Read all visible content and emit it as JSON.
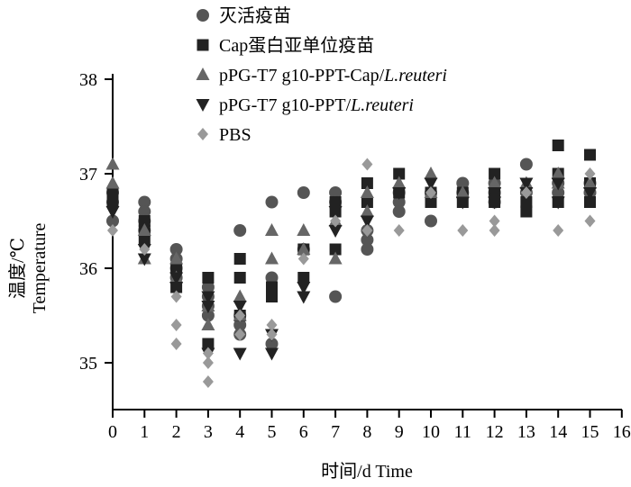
{
  "chart_data": {
    "type": "scatter",
    "title": "",
    "xlabel": "时间/d Time",
    "ylabel_line1": "温度/℃",
    "ylabel_line2": "Temperature",
    "xlim": [
      0,
      16
    ],
    "ylim": [
      34.5,
      38
    ],
    "xticks": [
      0,
      1,
      2,
      3,
      4,
      5,
      6,
      7,
      8,
      9,
      10,
      11,
      12,
      13,
      14,
      15,
      16
    ],
    "yticks": [
      35,
      36,
      37,
      38
    ],
    "grid": false,
    "legend_position": "top-left",
    "series": [
      {
        "name": "灭活疫苗",
        "name_parts": [
          {
            "text": "灭活疫苗",
            "italic": false
          }
        ],
        "marker": "circle",
        "color": "#555555",
        "points": [
          [
            0,
            36.8
          ],
          [
            0,
            36.7
          ],
          [
            0,
            36.5
          ],
          [
            1,
            36.7
          ],
          [
            1,
            36.6
          ],
          [
            1,
            36.5
          ],
          [
            1,
            36.4
          ],
          [
            2,
            36.2
          ],
          [
            2,
            36.1
          ],
          [
            2,
            36.0
          ],
          [
            2,
            35.9
          ],
          [
            3,
            35.8
          ],
          [
            3,
            35.7
          ],
          [
            3,
            35.6
          ],
          [
            3,
            35.5
          ],
          [
            4,
            36.4
          ],
          [
            4,
            35.5
          ],
          [
            4,
            35.4
          ],
          [
            4,
            35.3
          ],
          [
            5,
            36.7
          ],
          [
            5,
            35.9
          ],
          [
            5,
            35.2
          ],
          [
            6,
            36.8
          ],
          [
            6,
            36.2
          ],
          [
            7,
            36.8
          ],
          [
            7,
            36.7
          ],
          [
            7,
            35.7
          ],
          [
            8,
            36.4
          ],
          [
            8,
            36.3
          ],
          [
            8,
            36.2
          ],
          [
            9,
            36.8
          ],
          [
            9,
            36.7
          ],
          [
            9,
            36.6
          ],
          [
            10,
            36.8
          ],
          [
            10,
            36.5
          ],
          [
            11,
            36.9
          ],
          [
            11,
            36.8
          ],
          [
            12,
            36.9
          ],
          [
            12,
            36.8
          ],
          [
            12,
            36.7
          ],
          [
            13,
            37.1
          ],
          [
            13,
            36.8
          ],
          [
            14,
            36.9
          ],
          [
            14,
            36.8
          ],
          [
            15,
            36.9
          ],
          [
            15,
            36.8
          ]
        ]
      },
      {
        "name": "Cap蛋白亚单位疫苗",
        "name_parts": [
          {
            "text": "Cap蛋白亚单位疫苗",
            "italic": false
          }
        ],
        "marker": "square",
        "color": "#222222",
        "points": [
          [
            0,
            36.8
          ],
          [
            0,
            36.7
          ],
          [
            1,
            36.5
          ],
          [
            1,
            36.4
          ],
          [
            1,
            36.3
          ],
          [
            2,
            36.0
          ],
          [
            2,
            35.8
          ],
          [
            3,
            35.9
          ],
          [
            3,
            35.2
          ],
          [
            4,
            36.1
          ],
          [
            4,
            35.9
          ],
          [
            4,
            35.5
          ],
          [
            5,
            35.8
          ],
          [
            5,
            35.7
          ],
          [
            6,
            36.2
          ],
          [
            6,
            35.9
          ],
          [
            7,
            36.7
          ],
          [
            7,
            36.6
          ],
          [
            7,
            36.2
          ],
          [
            8,
            36.9
          ],
          [
            8,
            36.7
          ],
          [
            9,
            37.0
          ],
          [
            9,
            36.8
          ],
          [
            10,
            36.8
          ],
          [
            10,
            36.7
          ],
          [
            11,
            36.8
          ],
          [
            11,
            36.7
          ],
          [
            12,
            37.0
          ],
          [
            12,
            36.8
          ],
          [
            12,
            36.7
          ],
          [
            13,
            36.7
          ],
          [
            13,
            36.6
          ],
          [
            14,
            37.3
          ],
          [
            14,
            37.0
          ],
          [
            14,
            36.7
          ],
          [
            15,
            37.2
          ],
          [
            15,
            36.9
          ],
          [
            15,
            36.7
          ]
        ]
      },
      {
        "name": "pPG-T7 g10-PPT-Cap/L.reuteri",
        "name_parts": [
          {
            "text": "pPG-T7 g10-PPT-Cap/",
            "italic": false
          },
          {
            "text": "L.reuteri",
            "italic": true
          }
        ],
        "marker": "triangle-up",
        "color": "#666666",
        "points": [
          [
            0,
            37.1
          ],
          [
            0,
            36.9
          ],
          [
            1,
            36.4
          ],
          [
            1,
            36.1
          ],
          [
            2,
            36.1
          ],
          [
            2,
            35.9
          ],
          [
            3,
            35.6
          ],
          [
            3,
            35.4
          ],
          [
            4,
            35.7
          ],
          [
            4,
            35.5
          ],
          [
            5,
            36.4
          ],
          [
            5,
            36.1
          ],
          [
            6,
            36.4
          ],
          [
            6,
            36.2
          ],
          [
            7,
            36.5
          ],
          [
            7,
            36.1
          ],
          [
            8,
            36.8
          ],
          [
            8,
            36.6
          ],
          [
            9,
            36.9
          ],
          [
            10,
            37.0
          ],
          [
            10,
            36.8
          ],
          [
            11,
            36.8
          ],
          [
            12,
            36.9
          ],
          [
            13,
            36.9
          ],
          [
            14,
            37.0
          ],
          [
            14,
            36.9
          ],
          [
            15,
            36.9
          ]
        ]
      },
      {
        "name": "pPG-T7 g10-PPT/L.reuteri",
        "name_parts": [
          {
            "text": "pPG-T7 g10-PPT/",
            "italic": false
          },
          {
            "text": "L.reuteri",
            "italic": true
          }
        ],
        "marker": "triangle-down",
        "color": "#222222",
        "points": [
          [
            0,
            36.6
          ],
          [
            1,
            36.2
          ],
          [
            1,
            36.1
          ],
          [
            2,
            35.9
          ],
          [
            2,
            35.8
          ],
          [
            3,
            35.7
          ],
          [
            3,
            35.6
          ],
          [
            3,
            35.1
          ],
          [
            4,
            35.6
          ],
          [
            4,
            35.1
          ],
          [
            5,
            35.3
          ],
          [
            5,
            35.1
          ],
          [
            6,
            35.8
          ],
          [
            6,
            35.7
          ],
          [
            7,
            36.6
          ],
          [
            7,
            36.4
          ],
          [
            8,
            36.5
          ],
          [
            9,
            36.8
          ],
          [
            10,
            36.9
          ],
          [
            11,
            36.7
          ],
          [
            12,
            36.8
          ],
          [
            12,
            36.7
          ],
          [
            13,
            36.9
          ],
          [
            13,
            36.8
          ],
          [
            14,
            36.9
          ],
          [
            14,
            36.7
          ],
          [
            15,
            36.8
          ]
        ]
      },
      {
        "name": "PBS",
        "name_parts": [
          {
            "text": "PBS",
            "italic": false
          }
        ],
        "marker": "diamond",
        "color": "#999999",
        "points": [
          [
            0,
            36.4
          ],
          [
            1,
            36.2
          ],
          [
            2,
            35.7
          ],
          [
            2,
            35.4
          ],
          [
            2,
            35.2
          ],
          [
            3,
            35.1
          ],
          [
            3,
            35.0
          ],
          [
            3,
            34.8
          ],
          [
            4,
            35.5
          ],
          [
            4,
            35.3
          ],
          [
            5,
            35.4
          ],
          [
            5,
            35.3
          ],
          [
            6,
            36.1
          ],
          [
            7,
            36.5
          ],
          [
            8,
            37.1
          ],
          [
            8,
            36.4
          ],
          [
            9,
            36.4
          ],
          [
            10,
            36.8
          ],
          [
            11,
            36.4
          ],
          [
            12,
            36.5
          ],
          [
            12,
            36.4
          ],
          [
            13,
            36.8
          ],
          [
            14,
            36.4
          ],
          [
            15,
            37.0
          ],
          [
            15,
            36.5
          ]
        ]
      }
    ]
  }
}
